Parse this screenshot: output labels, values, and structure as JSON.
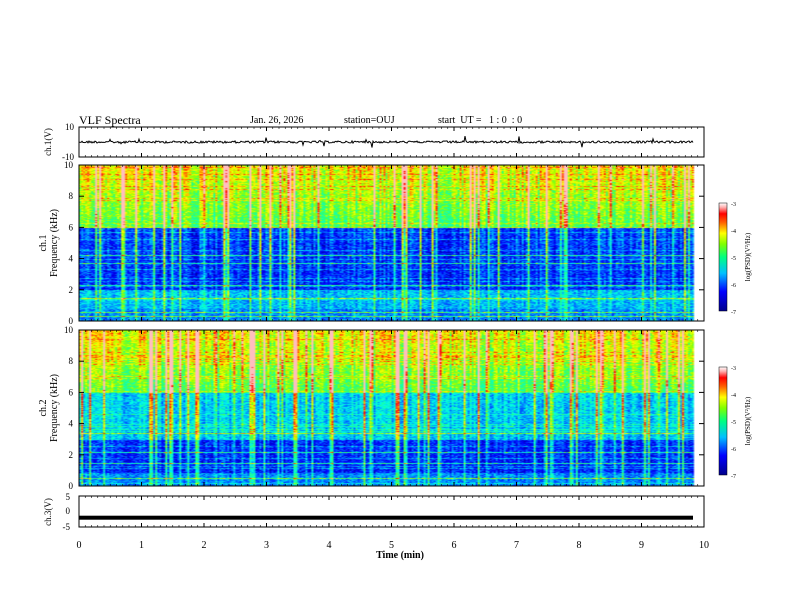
{
  "header": {
    "title": "VLF Spectra",
    "date": "Jan. 26, 2026",
    "station": "station=OUJ",
    "start_ut": "start  UT =   1 : 0  : 0"
  },
  "colors": {
    "waveform": "#000000",
    "colormap": [
      "#00008b",
      "#0000ff",
      "#0080ff",
      "#00ffff",
      "#00ff80",
      "#80ff00",
      "#ffff00",
      "#ff8000",
      "#ff0000",
      "#ffb0b0",
      "#ffffff"
    ]
  },
  "chart_data": [
    {
      "type": "line",
      "name": "ch1-waveform",
      "ylabel": "ch.1(V)",
      "ylim": [
        -10,
        10
      ],
      "yticks": [
        "10",
        "-10"
      ],
      "baseline": 0,
      "x": [
        0,
        10
      ]
    },
    {
      "type": "heatmap",
      "name": "ch1-spectrogram",
      "ylabel": "ch.1\nFrequency  (kHz)",
      "ylabel_lines": [
        "ch.1",
        "Frequency  (kHz)"
      ],
      "ylim": [
        0,
        10
      ],
      "yticks": [
        "0",
        "2",
        "4",
        "6",
        "8",
        "10"
      ],
      "xlim": [
        0,
        10
      ],
      "colorbar": {
        "label": "log(PSD)(V²/Hz)",
        "range": [
          -7,
          -3
        ],
        "ticks": [
          "-3",
          "-4",
          "-5",
          "-6",
          "-7"
        ]
      },
      "dark_band_khz": [
        2,
        6
      ],
      "strong_lines_khz": [
        0.3,
        0.6,
        1.5,
        2.3,
        3.7,
        4.2
      ]
    },
    {
      "type": "heatmap",
      "name": "ch2-spectrogram",
      "ylabel": "ch.2\nFrequency  (kHz)",
      "ylabel_lines": [
        "ch.2",
        "Frequency  (kHz)"
      ],
      "ylim": [
        0,
        10
      ],
      "yticks": [
        "0",
        "2",
        "4",
        "6",
        "8",
        "10"
      ],
      "xlim": [
        0,
        10
      ],
      "colorbar": {
        "label": "log(PSD)(V²/Hz)",
        "range": [
          -7,
          -3
        ],
        "ticks": [
          "-3",
          "-4",
          "-5",
          "-6",
          "-7"
        ]
      },
      "dark_band_khz": [
        0,
        3
      ],
      "strong_lines_khz": [
        0.5,
        1.5,
        2.2,
        3.4
      ]
    },
    {
      "type": "line",
      "name": "ch3-waveform",
      "ylabel": "ch.3(V)",
      "ylim": [
        -5,
        5
      ],
      "yticks": [
        "5",
        "0",
        "-5"
      ],
      "baseline": -2,
      "x": [
        0,
        10
      ]
    }
  ],
  "x_axis": {
    "label": "Time  (min)",
    "ticks": [
      "0",
      "1",
      "2",
      "3",
      "4",
      "5",
      "6",
      "7",
      "8",
      "9",
      "10"
    ],
    "range": [
      0,
      10
    ]
  }
}
